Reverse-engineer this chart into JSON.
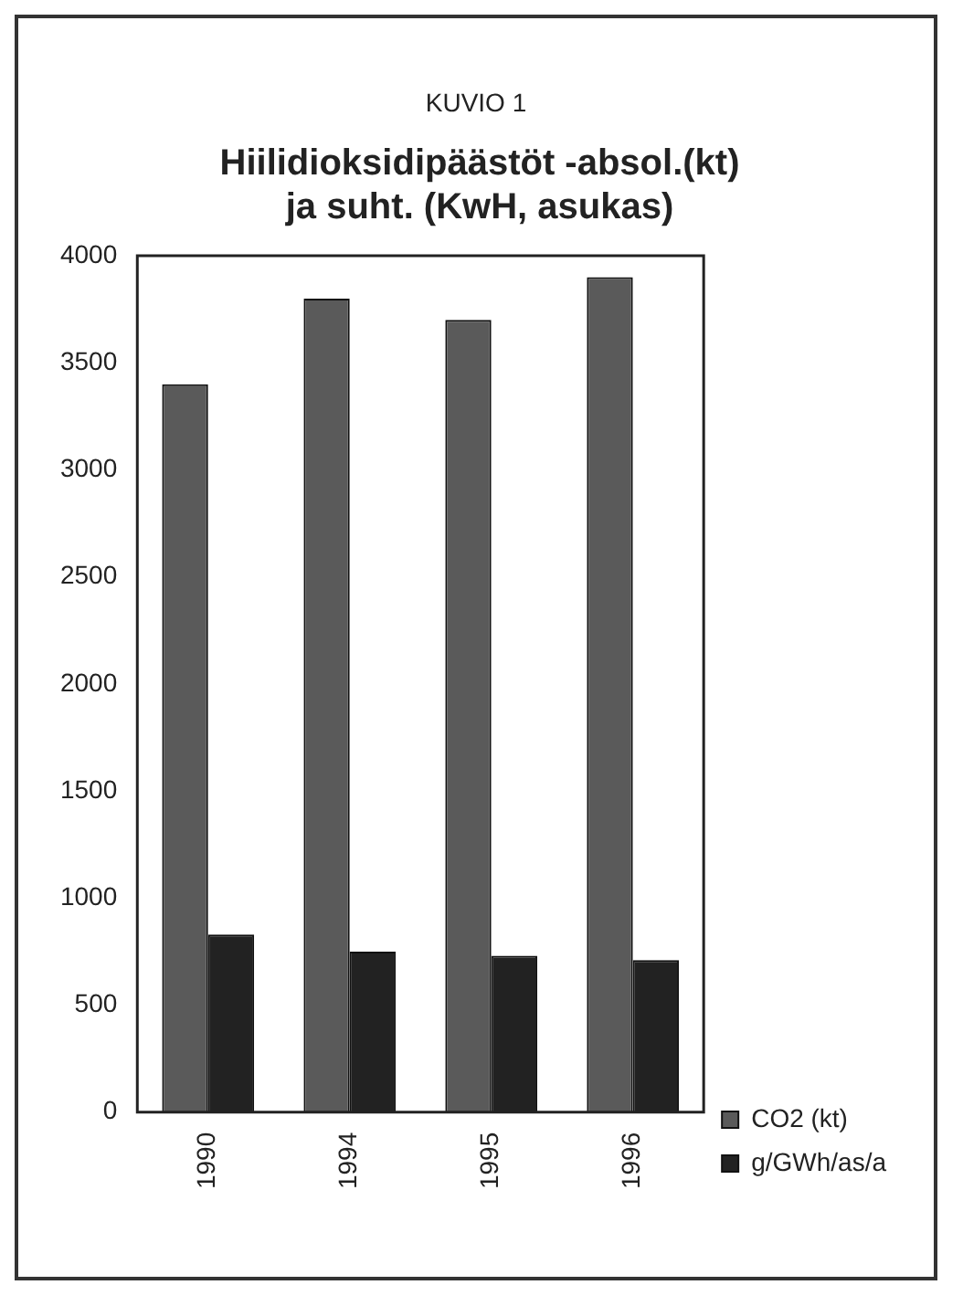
{
  "chart_data": {
    "type": "bar",
    "subtitle": "KUVIO 1",
    "title": "Hiilidioksidipäästöt -absol.(kt)\nja suht. (KwH, asukas)",
    "categories": [
      "1990",
      "1994",
      "1995",
      "1996"
    ],
    "series": [
      {
        "name": "CO2 (kt)",
        "color": "#5a5a5a",
        "values": [
          3400,
          3800,
          3700,
          3900
        ]
      },
      {
        "name": "g/GWh/as/a",
        "color": "#222222",
        "values": [
          830,
          750,
          730,
          710
        ]
      }
    ],
    "ylim": [
      0,
      4000
    ],
    "yticks": [
      0,
      500,
      1000,
      1500,
      2000,
      2500,
      3000,
      3500,
      4000
    ],
    "grid": false,
    "legend": "bottom right"
  }
}
